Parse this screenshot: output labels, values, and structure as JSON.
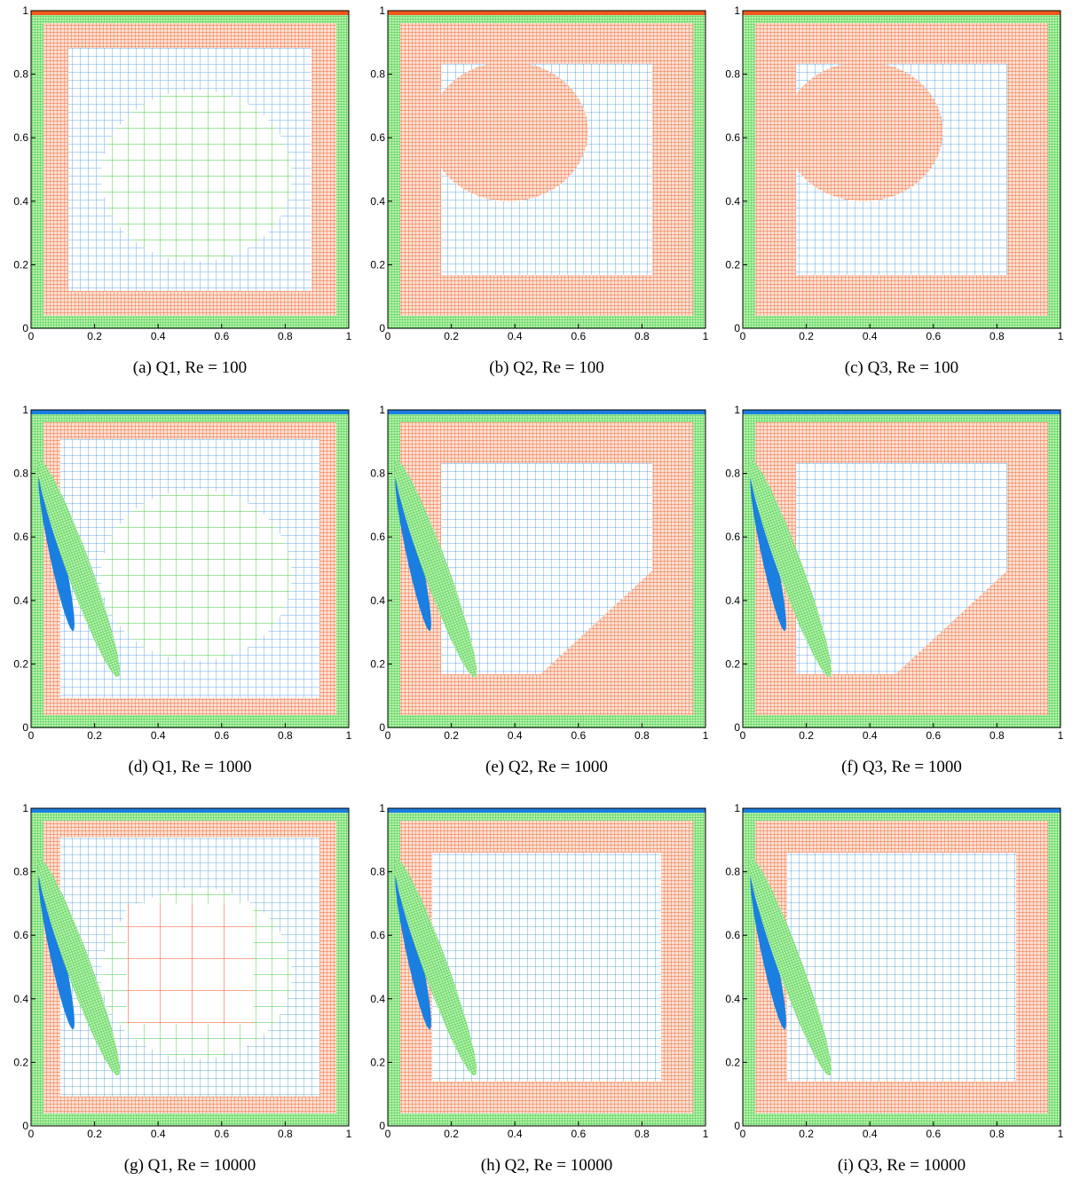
{
  "chart_data": [
    {
      "type": "mesh",
      "caption": "(a)  Q1, Re = 100",
      "xlim": [
        0,
        1
      ],
      "ylim": [
        0,
        1
      ],
      "xticks": [
        0,
        0.2,
        0.4,
        0.6,
        0.8,
        1
      ],
      "yticks": [
        0,
        0.2,
        0.4,
        0.6,
        0.8,
        1
      ]
    },
    {
      "type": "mesh",
      "caption": "(b)  Q2, Re = 100",
      "xlim": [
        0,
        1
      ],
      "ylim": [
        0,
        1
      ],
      "xticks": [
        0,
        0.2,
        0.4,
        0.6,
        0.8,
        1
      ],
      "yticks": [
        0,
        0.2,
        0.4,
        0.6,
        0.8,
        1
      ]
    },
    {
      "type": "mesh",
      "caption": "(c)  Q3, Re = 100",
      "xlim": [
        0,
        1
      ],
      "ylim": [
        0,
        1
      ],
      "xticks": [
        0,
        0.2,
        0.4,
        0.6,
        0.8,
        1
      ],
      "yticks": [
        0,
        0.2,
        0.4,
        0.6,
        0.8,
        1
      ]
    },
    {
      "type": "mesh",
      "caption": "(d)  Q1, Re = 1000",
      "xlim": [
        0,
        1
      ],
      "ylim": [
        0,
        1
      ],
      "xticks": [
        0,
        0.2,
        0.4,
        0.6,
        0.8,
        1
      ],
      "yticks": [
        0,
        0.2,
        0.4,
        0.6,
        0.8,
        1
      ]
    },
    {
      "type": "mesh",
      "caption": "(e)  Q2, Re = 1000",
      "xlim": [
        0,
        1
      ],
      "ylim": [
        0,
        1
      ],
      "xticks": [
        0,
        0.2,
        0.4,
        0.6,
        0.8,
        1
      ],
      "yticks": [
        0,
        0.2,
        0.4,
        0.6,
        0.8,
        1
      ]
    },
    {
      "type": "mesh",
      "caption": "(f)  Q3, Re = 1000",
      "xlim": [
        0,
        1
      ],
      "ylim": [
        0,
        1
      ],
      "xticks": [
        0,
        0.2,
        0.4,
        0.6,
        0.8,
        1
      ],
      "yticks": [
        0,
        0.2,
        0.4,
        0.6,
        0.8,
        1
      ]
    },
    {
      "type": "mesh",
      "caption": "(g)  Q1, Re = 10000",
      "xlim": [
        0,
        1
      ],
      "ylim": [
        0,
        1
      ],
      "xticks": [
        0,
        0.2,
        0.4,
        0.6,
        0.8,
        1
      ],
      "yticks": [
        0,
        0.2,
        0.4,
        0.6,
        0.8,
        1
      ]
    },
    {
      "type": "mesh",
      "caption": "(h)  Q2, Re = 10000",
      "xlim": [
        0,
        1
      ],
      "ylim": [
        0,
        1
      ],
      "xticks": [
        0,
        0.2,
        0.4,
        0.6,
        0.8,
        1
      ],
      "yticks": [
        0,
        0.2,
        0.4,
        0.6,
        0.8,
        1
      ]
    },
    {
      "type": "mesh",
      "caption": "(i)  Q3, Re = 10000",
      "xlim": [
        0,
        1
      ],
      "ylim": [
        0,
        1
      ],
      "xticks": [
        0,
        0.2,
        0.4,
        0.6,
        0.8,
        1
      ],
      "yticks": [
        0,
        0.2,
        0.4,
        0.6,
        0.8,
        1
      ]
    }
  ]
}
